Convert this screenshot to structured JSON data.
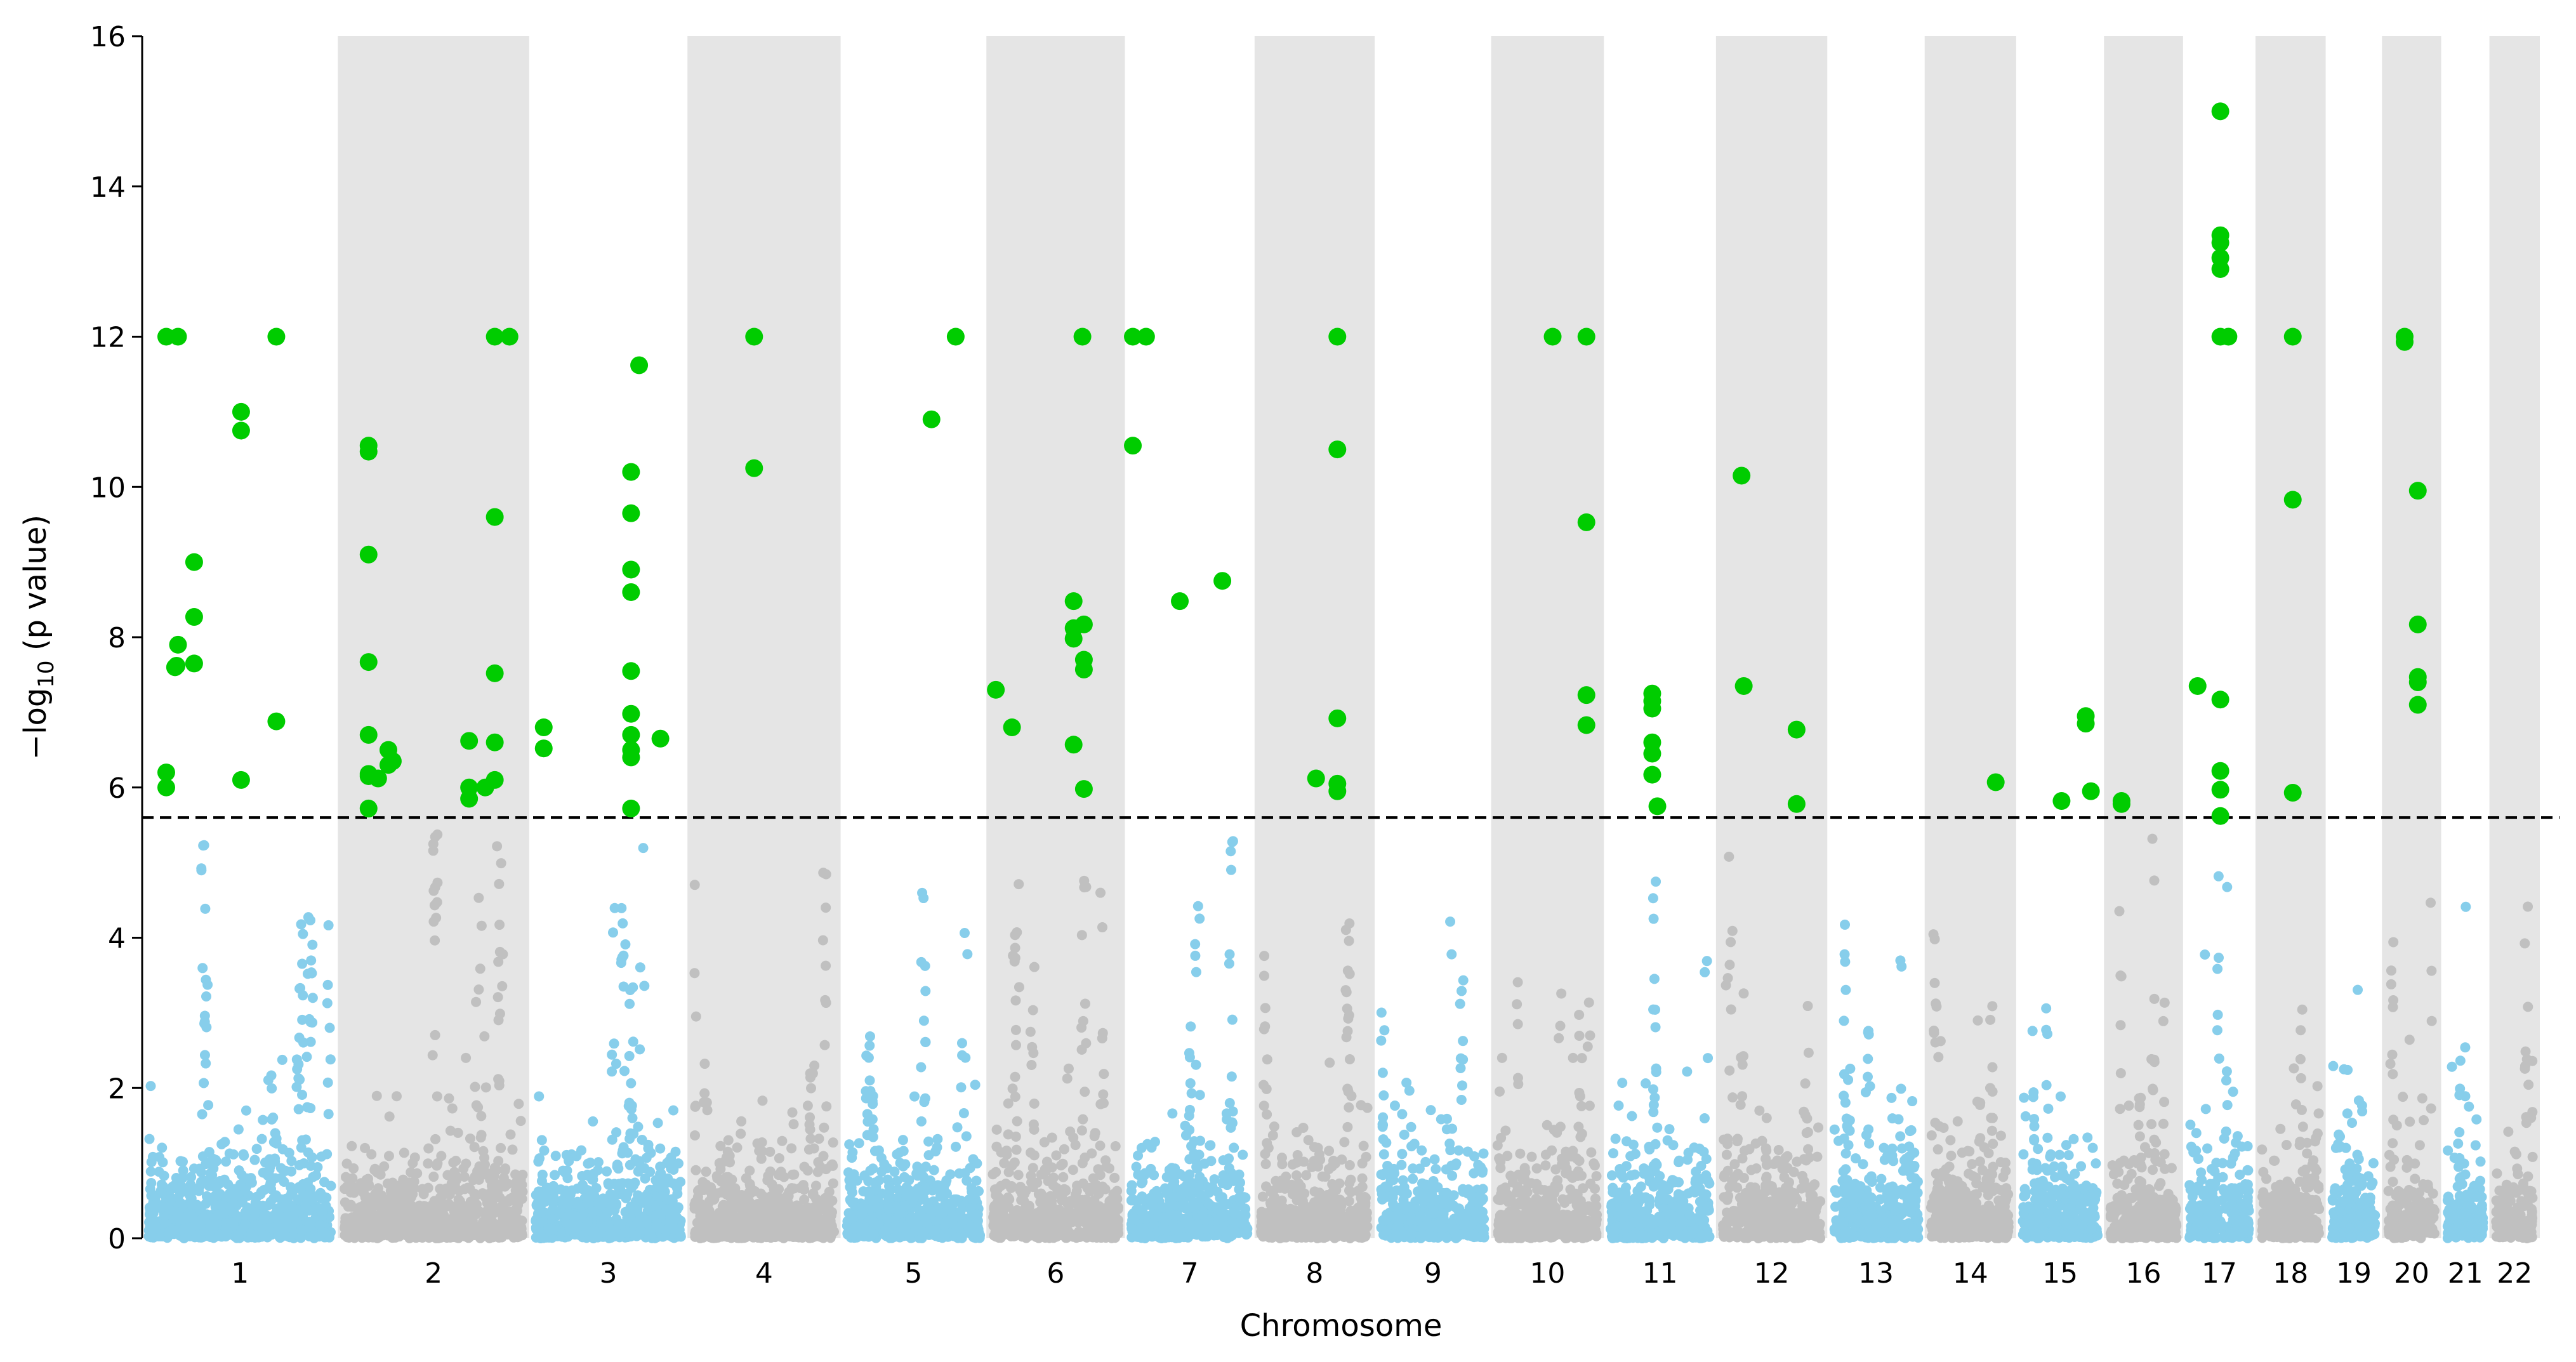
{
  "chart_data": {
    "type": "scatter",
    "subtype": "manhattan",
    "title": "",
    "xlabel": "Chromosome",
    "ylabel_parts": [
      "−log",
      "10",
      " (p value)"
    ],
    "ylim": [
      0,
      16
    ],
    "yticks": [
      0,
      2,
      4,
      6,
      8,
      10,
      12,
      14,
      16
    ],
    "significance_threshold": 5.6,
    "colors": {
      "odd": "#87CEEB",
      "even": "#C0C0C0",
      "band": "#E5E5E5",
      "significant": "#00CC00",
      "threshold": "#000000"
    },
    "chromosomes": [
      {
        "label": "1",
        "length_mb": 249,
        "bg_max": 5.45,
        "significant": [
          [
            24,
            12
          ],
          [
            24,
            6.2
          ],
          [
            24,
            6.0
          ],
          [
            40,
            12
          ],
          [
            40,
            7.9
          ],
          [
            36,
            7.6
          ],
          [
            38,
            7.62
          ],
          [
            62,
            9.0
          ],
          [
            62,
            8.27
          ],
          [
            62,
            7.65
          ],
          [
            126,
            11.0
          ],
          [
            126,
            10.75
          ],
          [
            126,
            6.1
          ],
          [
            174,
            12
          ],
          [
            174,
            6.88
          ]
        ]
      },
      {
        "label": "2",
        "length_mb": 243,
        "bg_max": 5.5,
        "significant": [
          [
            33,
            10.55
          ],
          [
            33,
            10.47
          ],
          [
            33,
            9.1
          ],
          [
            33,
            7.67
          ],
          [
            33,
            6.7
          ],
          [
            33,
            6.18
          ],
          [
            33,
            6.15
          ],
          [
            33,
            5.72
          ],
          [
            46,
            6.12
          ],
          [
            60,
            6.5
          ],
          [
            60,
            6.3
          ],
          [
            66,
            6.35
          ],
          [
            170,
            6.62
          ],
          [
            170,
            6.0
          ],
          [
            170,
            5.85
          ],
          [
            192,
            6.0
          ],
          [
            205,
            12
          ],
          [
            205,
            9.6
          ],
          [
            205,
            7.52
          ],
          [
            205,
            6.6
          ],
          [
            205,
            6.1
          ],
          [
            225,
            12
          ]
        ]
      },
      {
        "label": "3",
        "length_mb": 198,
        "bg_max": 5.5,
        "significant": [
          [
            11,
            6.8
          ],
          [
            11,
            6.52
          ],
          [
            130,
            10.2
          ],
          [
            130,
            9.65
          ],
          [
            130,
            8.9
          ],
          [
            130,
            8.6
          ],
          [
            130,
            7.55
          ],
          [
            130,
            6.98
          ],
          [
            130,
            6.7
          ],
          [
            130,
            6.5
          ],
          [
            130,
            6.4
          ],
          [
            130,
            5.72
          ],
          [
            141,
            11.62
          ],
          [
            170,
            6.65
          ]
        ]
      },
      {
        "label": "4",
        "length_mb": 191,
        "bg_max": 5.45,
        "significant": [
          [
            82,
            12
          ],
          [
            82,
            10.25
          ]
        ]
      },
      {
        "label": "5",
        "length_mb": 181,
        "bg_max": 5.15,
        "significant": [
          [
            115,
            10.9
          ],
          [
            148,
            12
          ]
        ]
      },
      {
        "label": "6",
        "length_mb": 171,
        "bg_max": 5.25,
        "significant": [
          [
            4,
            7.3
          ],
          [
            26,
            6.8
          ],
          [
            110,
            8.48
          ],
          [
            110,
            8.12
          ],
          [
            110,
            7.98
          ],
          [
            110,
            6.57
          ],
          [
            124,
            8.17
          ],
          [
            124,
            7.7
          ],
          [
            124,
            7.57
          ],
          [
            122,
            12
          ],
          [
            124,
            5.98
          ]
        ]
      },
      {
        "label": "7",
        "length_mb": 159,
        "bg_max": 5.35,
        "significant": [
          [
            2,
            10.55
          ],
          [
            2,
            12
          ],
          [
            20,
            12
          ],
          [
            66,
            8.48
          ],
          [
            124,
            8.75
          ]
        ]
      },
      {
        "label": "8",
        "length_mb": 146,
        "bg_max": 4.4,
        "significant": [
          [
            75,
            6.12
          ],
          [
            104,
            12
          ],
          [
            104,
            10.5
          ],
          [
            104,
            6.92
          ],
          [
            104,
            6.05
          ],
          [
            104,
            5.95
          ]
        ]
      },
      {
        "label": "9",
        "length_mb": 141,
        "bg_max": 4.5,
        "significant": []
      },
      {
        "label": "10",
        "length_mb": 136,
        "bg_max": 4.45,
        "significant": [
          [
            75,
            12
          ],
          [
            121,
            12
          ],
          [
            121,
            9.53
          ],
          [
            121,
            7.23
          ],
          [
            121,
            6.83
          ]
        ]
      },
      {
        "label": "11",
        "length_mb": 135,
        "bg_max": 4.8,
        "significant": [
          [
            57,
            7.25
          ],
          [
            57,
            7.15
          ],
          [
            57,
            7.05
          ],
          [
            57,
            6.6
          ],
          [
            57,
            6.45
          ],
          [
            57,
            6.17
          ],
          [
            64,
            5.75
          ]
        ]
      },
      {
        "label": "12",
        "length_mb": 134,
        "bg_max": 5.5,
        "significant": [
          [
            26,
            10.15
          ],
          [
            29,
            7.35
          ],
          [
            101,
            6.77
          ],
          [
            101,
            5.78
          ]
        ]
      },
      {
        "label": "13",
        "length_mb": 115,
        "bg_max": 4.45,
        "significant": []
      },
      {
        "label": "14",
        "length_mb": 107,
        "bg_max": 4.35,
        "significant": [
          [
            88,
            6.07
          ]
        ]
      },
      {
        "label": "15",
        "length_mb": 102,
        "bg_max": 4.7,
        "significant": [
          [
            53,
            5.82
          ],
          [
            86,
            6.95
          ],
          [
            86,
            6.85
          ],
          [
            93,
            5.95
          ]
        ]
      },
      {
        "label": "16",
        "length_mb": 90,
        "bg_max": 5.5,
        "significant": [
          [
            15,
            5.82
          ],
          [
            15,
            5.78
          ]
        ]
      },
      {
        "label": "17",
        "length_mb": 81,
        "bg_max": 5.35,
        "significant": [
          [
            11,
            7.35
          ],
          [
            42,
            15.0
          ],
          [
            42,
            13.35
          ],
          [
            42,
            13.25
          ],
          [
            42,
            13.05
          ],
          [
            42,
            12.9
          ],
          [
            42,
            12
          ],
          [
            42,
            7.17
          ],
          [
            42,
            6.22
          ],
          [
            42,
            5.97
          ],
          [
            42,
            5.62
          ],
          [
            53,
            12
          ]
        ]
      },
      {
        "label": "18",
        "length_mb": 78,
        "bg_max": 3.8,
        "significant": [
          [
            42,
            12
          ],
          [
            42,
            9.83
          ],
          [
            42,
            5.93
          ]
        ]
      },
      {
        "label": "19",
        "length_mb": 59,
        "bg_max": 5.15,
        "significant": []
      },
      {
        "label": "20",
        "length_mb": 63,
        "bg_max": 4.95,
        "significant": [
          [
            22,
            12
          ],
          [
            22,
            11.93
          ],
          [
            40,
            9.95
          ],
          [
            40,
            8.17
          ],
          [
            40,
            7.47
          ],
          [
            40,
            7.4
          ],
          [
            40,
            7.1
          ]
        ]
      },
      {
        "label": "21",
        "length_mb": 48,
        "bg_max": 4.6,
        "significant": []
      },
      {
        "label": "22",
        "length_mb": 51,
        "bg_max": 5.45,
        "significant": []
      }
    ]
  }
}
